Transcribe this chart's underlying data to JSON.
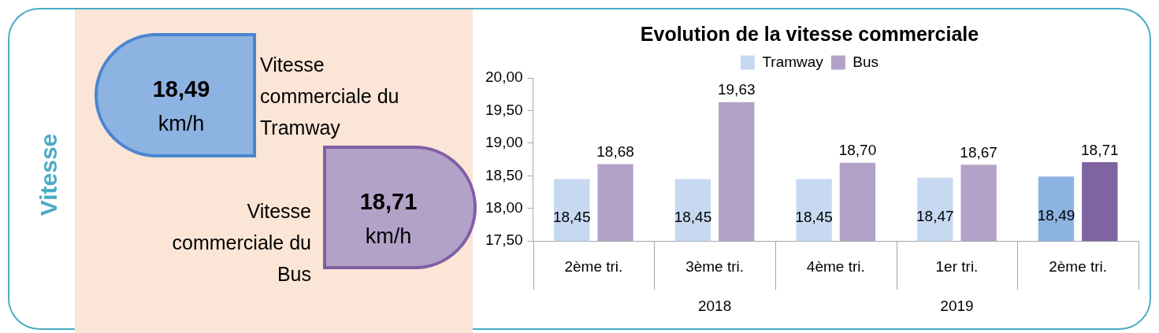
{
  "chart_data": [
    {
      "type": "other",
      "title": "Vitesse",
      "colors": [
        "#8db3e2",
        "#b3a2c7"
      ],
      "annotations": [
        "18,49",
        "km/h",
        "Vitesse commerciale du Tramway",
        "18,71",
        "km/h",
        "Vitesse commerciale du Bus"
      ]
    },
    {
      "type": "bar",
      "title": "Evolution de la vitesse commerciale",
      "categories": [
        "2ème tri.",
        "3ème tri.",
        "4ème tri.",
        "1er tri.",
        "2ème tri."
      ],
      "series": [
        {
          "name": "Tramway",
          "color": "#c6d9f1",
          "colors": [
            "#c6d9f1",
            "#c6d9f1",
            "#c6d9f1",
            "#c6d9f1",
            "#8db3e2"
          ],
          "values": [
            18.45,
            18.45,
            18.45,
            18.47,
            18.49
          ],
          "value_labels": [
            "18,45",
            "18,45",
            "18,45",
            "18,47",
            "18,49"
          ]
        },
        {
          "name": "Bus",
          "color": "#b3a2c7",
          "colors": [
            "#b3a2c7",
            "#b3a2c7",
            "#b3a2c7",
            "#b3a2c7",
            "#8064a2"
          ],
          "values": [
            18.68,
            19.63,
            18.7,
            18.67,
            18.71
          ],
          "value_labels": [
            "18,68",
            "19,63",
            "18,70",
            "18,67",
            "18,71"
          ]
        }
      ],
      "ylim": [
        17.5,
        20
      ],
      "yticks": [
        {
          "value": 17.5,
          "label": "17,50"
        },
        {
          "value": 18,
          "label": "18,00"
        },
        {
          "value": 18.5,
          "label": "18,50"
        },
        {
          "value": 19,
          "label": "19,00"
        },
        {
          "value": 19.5,
          "label": "19,50"
        },
        {
          "value": 20,
          "label": "20,00"
        }
      ],
      "legend": "top",
      "grid": false,
      "annotations": [
        {
          "text": "2018",
          "x": "3ème tri."
        },
        {
          "text": "2019",
          "x": "1er tri."
        }
      ]
    }
  ]
}
